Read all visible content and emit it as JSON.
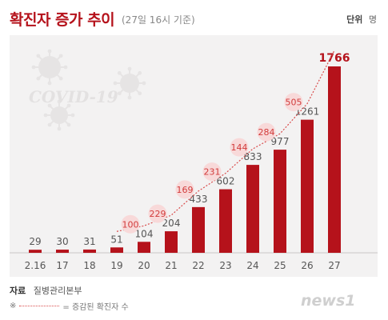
{
  "header": {
    "title": "확진자 증가 추이",
    "subtitle": "(27일 16시 기준)",
    "unit_label": "단위",
    "unit_value": "명"
  },
  "watermark": {
    "text": "COVID-19"
  },
  "footer": {
    "source_label": "자료",
    "source_value": "질병관리본부",
    "note_symbol": "※",
    "note_text": "= 증감된 확진자 수"
  },
  "logo": {
    "text": "news1"
  },
  "colors": {
    "bar": "#b5121b",
    "bubble_fill": "#f8d9d9",
    "bubble_text": "#d23c3c",
    "trend_line": "#d94b4b",
    "title": "#b5121b"
  },
  "chart_data": {
    "type": "bar",
    "categories": [
      "2.16",
      "17",
      "18",
      "19",
      "20",
      "21",
      "22",
      "23",
      "24",
      "25",
      "26",
      "27"
    ],
    "series": [
      {
        "values": [
          29,
          30,
          31,
          51,
          104,
          204,
          433,
          602,
          833,
          977,
          1261,
          1766
        ]
      }
    ],
    "increase_labels": [
      {
        "category": "20",
        "value": 100
      },
      {
        "category": "21",
        "value": 229
      },
      {
        "category": "22",
        "value": 169
      },
      {
        "category": "23",
        "value": 231
      },
      {
        "category": "24",
        "value": 144
      },
      {
        "category": "25",
        "value": 284
      },
      {
        "category": "26",
        "value": 505
      }
    ],
    "ylim": [
      0,
      1766
    ],
    "grid": false,
    "legend": "none"
  }
}
